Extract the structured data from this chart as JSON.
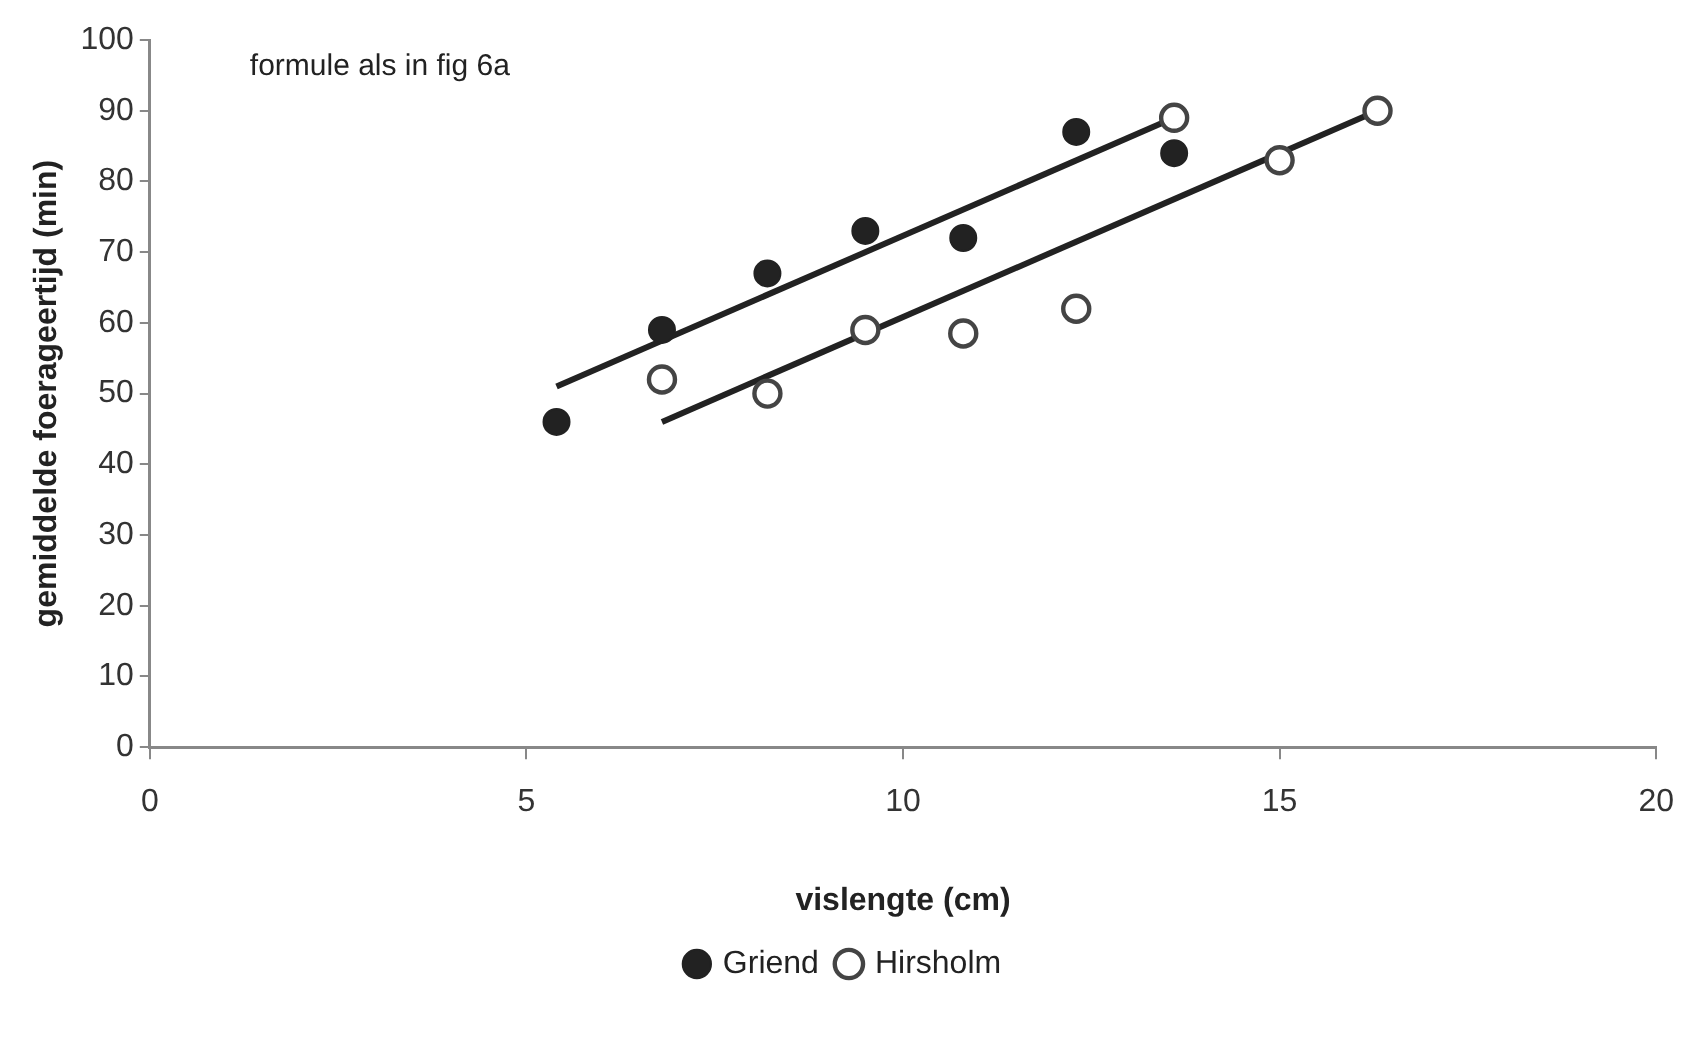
{
  "chart_data": {
    "type": "scatter",
    "xlabel": "vislengte (cm)",
    "ylabel": "gemiddelde foerageertijd (min)",
    "annotations": [
      "formule als in fig 6a"
    ],
    "xlim": [
      0,
      20
    ],
    "xticks": [
      0,
      5,
      10,
      15,
      20
    ],
    "ylim": [
      0,
      100
    ],
    "yticks": [
      0,
      10,
      20,
      30,
      40,
      50,
      60,
      70,
      80,
      90,
      100
    ],
    "grid": false,
    "legend": "bottom",
    "series": [
      {
        "name": "Griend",
        "color": "#222222",
        "marker": "circle",
        "x": [
          5.4,
          6.8,
          8.2,
          9.5,
          10.8,
          12.3,
          13.6
        ],
        "values": [
          46,
          59,
          67,
          73,
          72,
          87,
          84
        ]
      },
      {
        "name": "Hirsholm",
        "color": "#444444",
        "marker": "circle",
        "x": [
          6.8,
          8.2,
          9.5,
          10.8,
          12.3,
          13.6,
          15,
          16.3
        ],
        "values": [
          52,
          50,
          59,
          58.5,
          62,
          89,
          83,
          90
        ]
      },
      {
        "type": "line",
        "marker": "none",
        "color": "#222222",
        "x": [
          5.4,
          13.6
        ],
        "values": [
          51,
          89
        ]
      },
      {
        "type": "line",
        "marker": "none",
        "color": "#222222",
        "x": [
          6.8,
          16.3
        ],
        "values": [
          46,
          90
        ]
      }
    ]
  }
}
